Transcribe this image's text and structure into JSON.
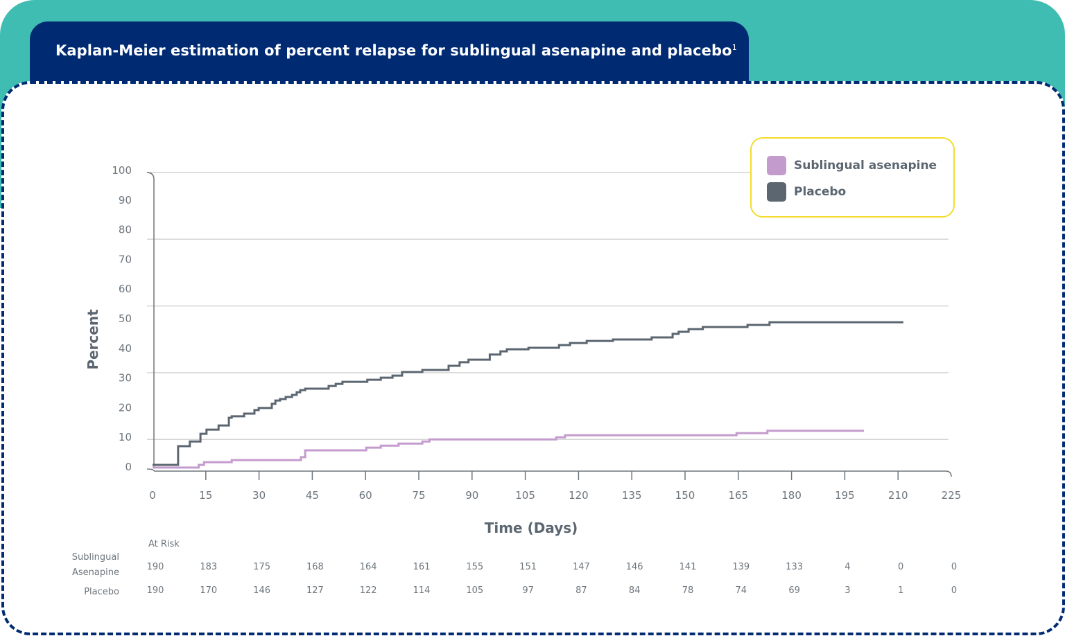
{
  "header": {
    "title": "Kaplan-Meier estimation of percent relapse for sublingual asenapine and placebo",
    "superscript": "1"
  },
  "colors": {
    "teal": "#40bdb2",
    "navy": "#002b73",
    "asenapine": "#c49bcd",
    "placebo": "#5b6670",
    "legend_border": "#f3dc2c"
  },
  "chart_data": {
    "type": "line",
    "step": true,
    "title": "Kaplan-Meier estimation of percent relapse for sublingual asenapine and placebo",
    "xlabel": "Time (Days)",
    "ylabel": "Percent",
    "xlim": [
      0,
      225
    ],
    "ylim": [
      0,
      100
    ],
    "xticks": [
      "0",
      "15",
      "30",
      "45",
      "60",
      "75",
      "90",
      "105",
      "120",
      "135",
      "150",
      "165",
      "180",
      "195",
      "210",
      "225"
    ],
    "yticks": [
      "100",
      "90",
      "80",
      "70",
      "60",
      "50",
      "40",
      "30",
      "20",
      "10",
      "0"
    ],
    "gridlines": [
      100,
      77.5,
      55,
      32.5,
      10
    ],
    "legend_position": "top-right",
    "series": [
      {
        "name": "Sublingual asenapine",
        "color": "#c49bcd",
        "points": [
          [
            0,
            0.5
          ],
          [
            13,
            1.4
          ],
          [
            14.5,
            2.3
          ],
          [
            22.3,
            3.0
          ],
          [
            41.8,
            4.0
          ],
          [
            43,
            6.3
          ],
          [
            60.2,
            7.2
          ],
          [
            64.3,
            7.9
          ],
          [
            69.3,
            8.6
          ],
          [
            76,
            9.3
          ],
          [
            78,
            10.0
          ],
          [
            113.7,
            10.7
          ],
          [
            116.2,
            11.4
          ],
          [
            164.5,
            12.1
          ],
          [
            173.2,
            12.9
          ],
          [
            200.4,
            12.9
          ]
        ]
      },
      {
        "name": "Placebo",
        "color": "#5b6670",
        "points": [
          [
            0,
            1.4
          ],
          [
            7.2,
            7.7
          ],
          [
            10.5,
            9.3
          ],
          [
            13.5,
            11.9
          ],
          [
            15.2,
            13.3
          ],
          [
            18.6,
            14.7
          ],
          [
            21.5,
            17.3
          ],
          [
            22.3,
            17.8
          ],
          [
            25.8,
            18.7
          ],
          [
            28.7,
            19.9
          ],
          [
            29.9,
            20.6
          ],
          [
            33.6,
            22.0
          ],
          [
            34.6,
            23.1
          ],
          [
            35.9,
            23.6
          ],
          [
            37.5,
            24.3
          ],
          [
            39.3,
            25.0
          ],
          [
            40.6,
            25.9
          ],
          [
            41.6,
            26.6
          ],
          [
            43,
            27.1
          ],
          [
            49.6,
            28.0
          ],
          [
            51.6,
            28.7
          ],
          [
            53.5,
            29.4
          ],
          [
            60.5,
            30.1
          ],
          [
            64.3,
            30.8
          ],
          [
            67.6,
            31.5
          ],
          [
            70.3,
            32.7
          ],
          [
            76,
            33.4
          ],
          [
            83.4,
            34.8
          ],
          [
            86.5,
            36.0
          ],
          [
            89,
            36.9
          ],
          [
            95,
            38.6
          ],
          [
            98,
            39.7
          ],
          [
            99.8,
            40.4
          ],
          [
            105.9,
            40.9
          ],
          [
            114.5,
            41.8
          ],
          [
            117.6,
            42.5
          ],
          [
            122.3,
            43.2
          ],
          [
            129.7,
            43.7
          ],
          [
            140.6,
            44.4
          ],
          [
            146.5,
            45.6
          ],
          [
            148.2,
            46.3
          ],
          [
            151,
            47.2
          ],
          [
            155,
            47.9
          ],
          [
            167.6,
            48.6
          ],
          [
            173.8,
            49.5
          ],
          [
            211.5,
            49.5
          ]
        ]
      }
    ],
    "at_risk": {
      "title": "At Risk",
      "rows": [
        {
          "label_line1": "Sublingual",
          "label_line2": "Asenapine",
          "values": [
            "190",
            "183",
            "175",
            "168",
            "164",
            "161",
            "155",
            "151",
            "147",
            "146",
            "141",
            "139",
            "133",
            "4",
            "0",
            "0"
          ]
        },
        {
          "label_line1": "Placebo",
          "label_line2": "",
          "values": [
            "190",
            "170",
            "146",
            "127",
            "122",
            "114",
            "105",
            "97",
            "87",
            "84",
            "78",
            "74",
            "69",
            "3",
            "1",
            "0"
          ]
        }
      ]
    }
  }
}
